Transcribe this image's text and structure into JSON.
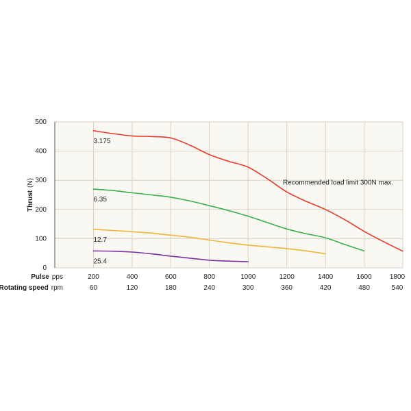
{
  "chart_data": {
    "type": "line",
    "title": "",
    "ylabel": "Thrust",
    "ylabel_unit": "(N)",
    "ylim": [
      0,
      500
    ],
    "yticks": [
      0,
      100,
      200,
      300,
      400,
      500
    ],
    "x_rows": [
      {
        "label": "Pulse",
        "unit": "pps",
        "ticks": [
          "200",
          "400",
          "600",
          "800",
          "1000",
          "1200",
          "1400",
          "1600",
          "1800"
        ]
      },
      {
        "label": "Rotating speed",
        "unit": "rpm",
        "ticks": [
          "60",
          "120",
          "180",
          "240",
          "300",
          "360",
          "420",
          "480",
          "540"
        ]
      }
    ],
    "xlim": [
      0,
      1800
    ],
    "grid": true,
    "background": "#faf8f2",
    "grid_color": "#d9d2c2",
    "series": [
      {
        "name": "3.175",
        "color": "#e8392a",
        "x": [
          200,
          300,
          400,
          500,
          600,
          700,
          800,
          900,
          1000,
          1100,
          1200,
          1300,
          1400,
          1500,
          1600,
          1700,
          1800
        ],
        "y": [
          470,
          460,
          452,
          450,
          445,
          420,
          388,
          365,
          345,
          305,
          260,
          228,
          200,
          165,
          125,
          90,
          57
        ]
      },
      {
        "name": "6.35",
        "color": "#3ab04a",
        "x": [
          200,
          300,
          400,
          500,
          600,
          700,
          800,
          900,
          1000,
          1100,
          1200,
          1300,
          1400,
          1500,
          1600
        ],
        "y": [
          270,
          265,
          257,
          250,
          242,
          229,
          213,
          196,
          177,
          155,
          133,
          117,
          103,
          80,
          58
        ]
      },
      {
        "name": "12.7",
        "color": "#f2b33a",
        "x": [
          200,
          300,
          400,
          500,
          600,
          700,
          800,
          900,
          1000,
          1100,
          1200,
          1300,
          1400
        ],
        "y": [
          132,
          128,
          124,
          119,
          112,
          105,
          95,
          86,
          78,
          72,
          66,
          58,
          48
        ]
      },
      {
        "name": "25.4",
        "color": "#7a2fa0",
        "x": [
          200,
          300,
          400,
          500,
          600,
          700,
          800,
          900,
          1000
        ],
        "y": [
          58,
          57,
          54,
          48,
          40,
          33,
          26,
          23,
          21
        ]
      }
    ],
    "annotations": [
      {
        "text": "Recommended load limit 300N max.",
        "x": 1180,
        "y": 285
      }
    ]
  }
}
